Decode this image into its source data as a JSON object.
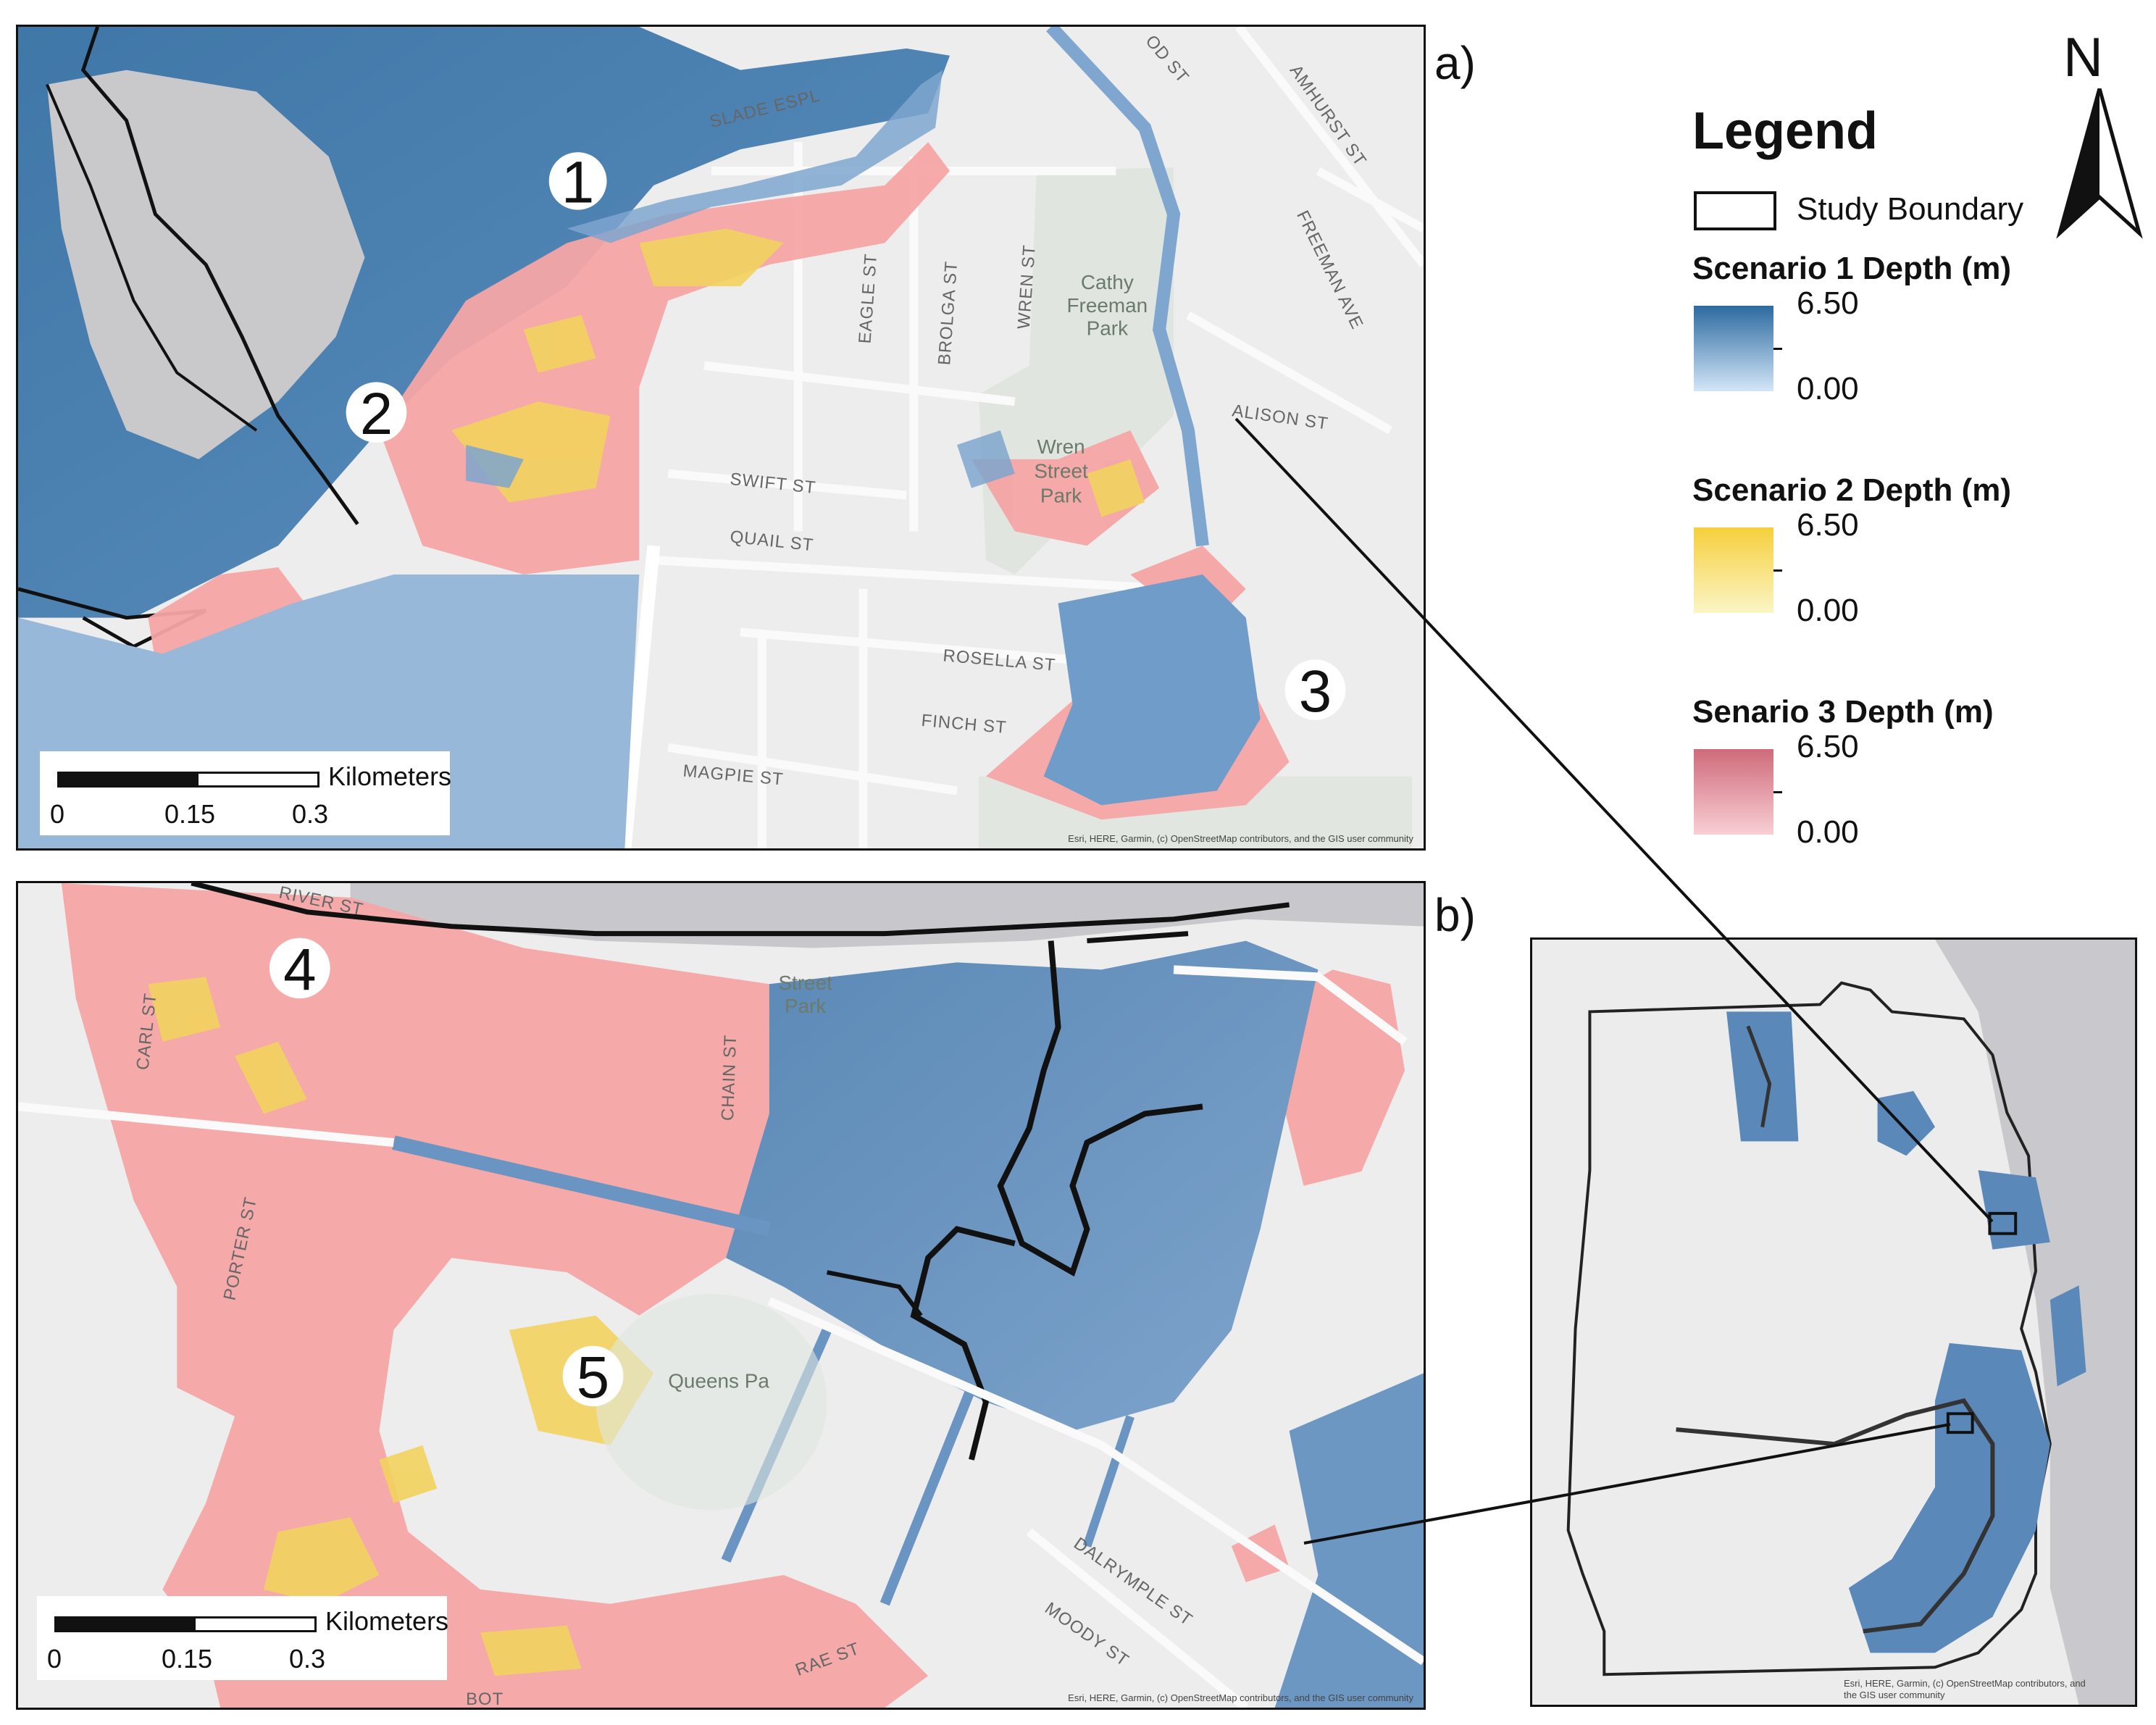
{
  "panels": {
    "a": {
      "letter": "a)",
      "numbers": [
        "1",
        "2",
        "3"
      ],
      "streets": [
        "SLADE ESPL",
        "EAGLE ST",
        "BROLGA ST",
        "WREN ST",
        "SWIFT ST",
        "QUAIL ST",
        "ROSELLA ST",
        "FINCH ST",
        "MAGPIE ST",
        "AMHURST ST",
        "FREEMAN AVE",
        "ALISON ST",
        "OD ST"
      ],
      "parks": [
        "Cathy",
        "Freeman",
        "Park",
        "Wren",
        "Street",
        "Park"
      ],
      "credit": "Esri, HERE, Garmin, (c) OpenStreetMap contributors, and the GIS user community"
    },
    "b": {
      "letter": "b)",
      "numbers": [
        "4",
        "5"
      ],
      "streets": [
        "CHAIN ST",
        "PORTER ST",
        "DALRYMPLE ST",
        "MOODY ST",
        "RAE ST",
        "RIVER ST",
        "CARL ST",
        "BOT"
      ],
      "parks": [
        "Queens Pa",
        "Street",
        "Park"
      ],
      "credit": "Esri, HERE, Garmin, (c) OpenStreetMap contributors, and the GIS user community"
    },
    "inset": {
      "credit_line1": "Esri, HERE, Garmin, (c) OpenStreetMap contributors, and",
      "credit_line2": "the GIS user community"
    }
  },
  "scalebar": {
    "unit": "Kilometers",
    "ticks": [
      "0",
      "0.15",
      "0.3"
    ]
  },
  "legend": {
    "title": "Legend",
    "boundary_label": "Study Boundary",
    "scenarios": [
      {
        "label": "Scenario 1 Depth (m)",
        "max": "6.50",
        "min": "0.00",
        "color_high": "#2c6aa0",
        "color_low": "#d3e6f8"
      },
      {
        "label": "Scenario 2 Depth (m)",
        "max": "6.50",
        "min": "0.00",
        "color_high": "#f6cf3c",
        "color_low": "#fbf5c6"
      },
      {
        "label": "Senario 3 Depth (m)",
        "max": "6.50",
        "min": "0.00",
        "color_high": "#cf6a7a",
        "color_low": "#f9cfd5"
      }
    ]
  },
  "north_arrow": {
    "letter": "N"
  },
  "colors": {
    "scenario1": "#5a8fbd",
    "scenario2": "#f2d35e",
    "scenario3": "#f5a5a5",
    "water": "#c8c8cc",
    "land": "#ececec"
  }
}
